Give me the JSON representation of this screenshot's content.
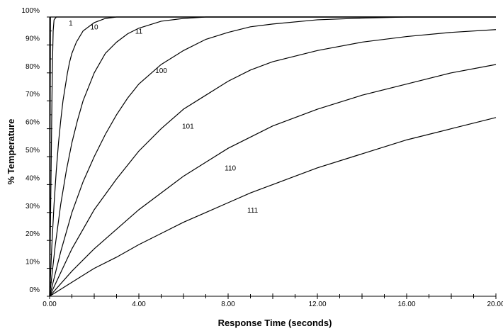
{
  "chart_data": {
    "type": "line",
    "xlabel": "Response Time (seconds)",
    "ylabel": "% Temperature",
    "xlim": [
      0,
      20
    ],
    "ylim": [
      0,
      100
    ],
    "x_ticks": [
      0,
      4,
      8,
      12,
      16,
      20
    ],
    "x_tick_labels": [
      "0.00",
      "4.00",
      "8.00",
      "12.00",
      "16.00",
      "20.00"
    ],
    "y_ticks": [
      0,
      10,
      20,
      30,
      40,
      50,
      60,
      70,
      80,
      90,
      100
    ],
    "y_tick_labels": [
      "0%",
      "10%",
      "20%",
      "30%",
      "40%",
      "50%",
      "60%",
      "70%",
      "80%",
      "90%",
      "100%"
    ],
    "grid": false,
    "curve_labels": [
      {
        "text": "1",
        "x": 0.95,
        "y": 97
      },
      {
        "text": "10",
        "x": 2.0,
        "y": 95.5
      },
      {
        "text": "11",
        "x": 4.0,
        "y": 94
      },
      {
        "text": "100",
        "x": 5.0,
        "y": 80
      },
      {
        "text": "101",
        "x": 6.2,
        "y": 60
      },
      {
        "text": "110",
        "x": 8.1,
        "y": 45
      },
      {
        "text": "111",
        "x": 9.1,
        "y": 30
      }
    ],
    "series": [
      {
        "values": [
          [
            0,
            0
          ],
          [
            0.04,
            100
          ],
          [
            20,
            100
          ]
        ]
      },
      {
        "values": [
          [
            0,
            0
          ],
          [
            0.03,
            20
          ],
          [
            0.06,
            40
          ],
          [
            0.09,
            60
          ],
          [
            0.12,
            80
          ],
          [
            0.16,
            95
          ],
          [
            0.2,
            99
          ],
          [
            0.3,
            100
          ],
          [
            20,
            100
          ]
        ]
      },
      {
        "values": [
          [
            0,
            0
          ],
          [
            0.1,
            18
          ],
          [
            0.2,
            33
          ],
          [
            0.3,
            45
          ],
          [
            0.4,
            55
          ],
          [
            0.5,
            63
          ],
          [
            0.6,
            70
          ],
          [
            0.7,
            75
          ],
          [
            0.8,
            80
          ],
          [
            0.9,
            84
          ],
          [
            1.0,
            87
          ],
          [
            1.2,
            91
          ],
          [
            1.5,
            95
          ],
          [
            2.0,
            98
          ],
          [
            2.5,
            99.5
          ],
          [
            3.0,
            100
          ],
          [
            20,
            100
          ]
        ]
      },
      {
        "values": [
          [
            0,
            0
          ],
          [
            0.25,
            18
          ],
          [
            0.5,
            33
          ],
          [
            0.75,
            45
          ],
          [
            1.0,
            55
          ],
          [
            1.25,
            63
          ],
          [
            1.5,
            70
          ],
          [
            2.0,
            80
          ],
          [
            2.5,
            87
          ],
          [
            3.0,
            91
          ],
          [
            3.5,
            94
          ],
          [
            4.0,
            96
          ],
          [
            5.0,
            98.5
          ],
          [
            6.0,
            99.5
          ],
          [
            7.0,
            100
          ],
          [
            20,
            100
          ]
        ]
      },
      {
        "values": [
          [
            0,
            0
          ],
          [
            0.5,
            16
          ],
          [
            1.0,
            30
          ],
          [
            1.5,
            41
          ],
          [
            2.0,
            50
          ],
          [
            2.5,
            58
          ],
          [
            3.0,
            65
          ],
          [
            3.5,
            71
          ],
          [
            4.0,
            76
          ],
          [
            5.0,
            83
          ],
          [
            6.0,
            88
          ],
          [
            7.0,
            92
          ],
          [
            8.0,
            94.5
          ],
          [
            9.0,
            96.5
          ],
          [
            10.0,
            97.5
          ],
          [
            12.0,
            99
          ],
          [
            14.0,
            99.6
          ],
          [
            16.0,
            100
          ],
          [
            20,
            100
          ]
        ]
      },
      {
        "values": [
          [
            0,
            0
          ],
          [
            1.0,
            17
          ],
          [
            2.0,
            31
          ],
          [
            3.0,
            42
          ],
          [
            4.0,
            52
          ],
          [
            5.0,
            60
          ],
          [
            6.0,
            67
          ],
          [
            7.0,
            72
          ],
          [
            8.0,
            77
          ],
          [
            9.0,
            81
          ],
          [
            10.0,
            84
          ],
          [
            12.0,
            88
          ],
          [
            14.0,
            91
          ],
          [
            16.0,
            93
          ],
          [
            18.0,
            94.5
          ],
          [
            20.0,
            95.5
          ]
        ]
      },
      {
        "values": [
          [
            0,
            0
          ],
          [
            1.0,
            9
          ],
          [
            2.0,
            17
          ],
          [
            3.0,
            24
          ],
          [
            4.0,
            31
          ],
          [
            5.0,
            37
          ],
          [
            6.0,
            43
          ],
          [
            7.0,
            48
          ],
          [
            8.0,
            53
          ],
          [
            9.0,
            57
          ],
          [
            10.0,
            61
          ],
          [
            12.0,
            67
          ],
          [
            14.0,
            72
          ],
          [
            16.0,
            76
          ],
          [
            18.0,
            80
          ],
          [
            20.0,
            83
          ]
        ]
      },
      {
        "values": [
          [
            0,
            0
          ],
          [
            1.0,
            5
          ],
          [
            2.0,
            10
          ],
          [
            3.0,
            14
          ],
          [
            4.0,
            18.5
          ],
          [
            5.0,
            22.5
          ],
          [
            6.0,
            26.5
          ],
          [
            7.0,
            30
          ],
          [
            8.0,
            33.5
          ],
          [
            9.0,
            37
          ],
          [
            10.0,
            40
          ],
          [
            12.0,
            46
          ],
          [
            14.0,
            51
          ],
          [
            16.0,
            56
          ],
          [
            18.0,
            60
          ],
          [
            20.0,
            64
          ]
        ]
      }
    ]
  }
}
